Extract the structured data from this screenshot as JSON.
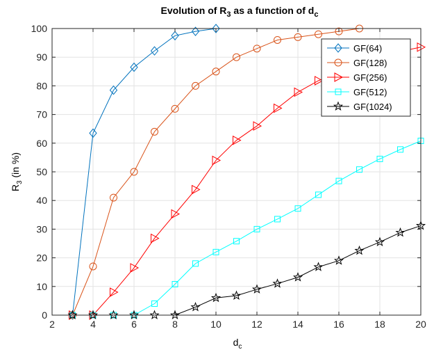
{
  "chart_data": {
    "type": "line",
    "title": {
      "main": "Evolution of R",
      "sub1": "3",
      "mid": " as a function of d",
      "sub2": "c"
    },
    "xlabel": {
      "main": "d",
      "sub": "c"
    },
    "ylabel": {
      "main": "R",
      "sub": "3",
      "tail": " (in %)"
    },
    "xlim": [
      2,
      20
    ],
    "ylim": [
      0,
      100
    ],
    "xticks": [
      2,
      4,
      6,
      8,
      10,
      12,
      14,
      16,
      18,
      20
    ],
    "yticks": [
      0,
      10,
      20,
      30,
      40,
      50,
      60,
      70,
      80,
      90,
      100
    ],
    "grid": true,
    "legend_position": "top-right",
    "series": [
      {
        "name": "GF(64)",
        "color": "#0072BD",
        "marker": "diamond",
        "x": [
          3,
          4,
          5,
          6,
          7,
          8,
          9,
          10
        ],
        "y": [
          0,
          63.5,
          78.5,
          86.5,
          92.2,
          97.5,
          99,
          100
        ]
      },
      {
        "name": "GF(128)",
        "color": "#D95319",
        "marker": "circle",
        "x": [
          3,
          4,
          5,
          6,
          7,
          8,
          9,
          10,
          11,
          12,
          13,
          14,
          15,
          16,
          17
        ],
        "y": [
          0,
          17,
          41,
          50,
          64,
          72,
          80,
          85,
          90,
          93,
          96,
          97,
          98,
          99,
          100
        ]
      },
      {
        "name": "GF(256)",
        "color": "#FF0000",
        "marker": "triangle-right",
        "x": [
          3,
          4,
          5,
          6,
          7,
          8,
          9,
          10,
          11,
          12,
          13,
          14,
          15,
          16,
          17,
          18,
          19,
          20
        ],
        "y": [
          0,
          0,
          8,
          16.5,
          26.8,
          35.3,
          43.8,
          54,
          61,
          66,
          72.2,
          77.8,
          81.8,
          84.5,
          87.5,
          90,
          92,
          93.5
        ]
      },
      {
        "name": "GF(512)",
        "color": "#00FFFF",
        "marker": "square",
        "x": [
          3,
          4,
          5,
          6,
          7,
          8,
          9,
          10,
          11,
          12,
          13,
          14,
          15,
          16,
          17,
          18,
          19,
          20
        ],
        "y": [
          0,
          0,
          0,
          0,
          4,
          10.8,
          18,
          22,
          25.8,
          30,
          33.5,
          37.2,
          42,
          46.8,
          50.8,
          54.5,
          57.8,
          60.8
        ]
      },
      {
        "name": "GF(1024)",
        "color": "#000000",
        "marker": "star",
        "x": [
          3,
          4,
          5,
          6,
          7,
          8,
          9,
          10,
          11,
          12,
          13,
          14,
          15,
          16,
          17,
          18,
          19,
          20
        ],
        "y": [
          0,
          0,
          0,
          0,
          0,
          0,
          2.8,
          6,
          6.8,
          9,
          11,
          13.2,
          16.8,
          19,
          22.5,
          25.5,
          28.8,
          31.2
        ]
      }
    ]
  }
}
